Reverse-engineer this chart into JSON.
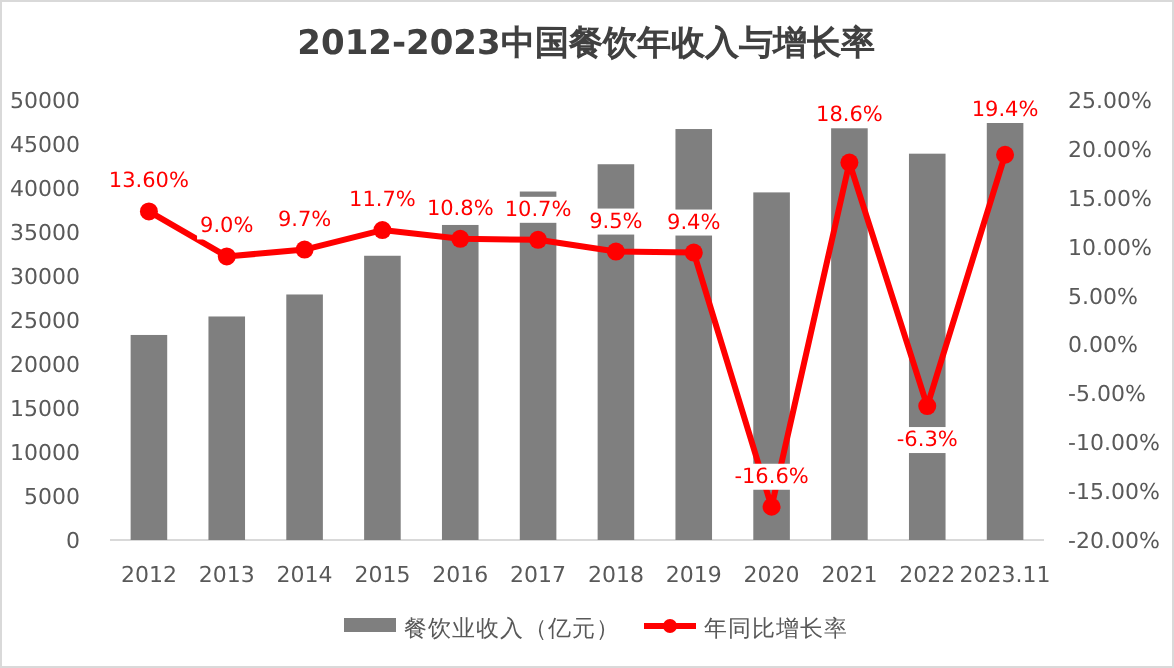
{
  "chart_data": {
    "type": "bar",
    "title": "2012-2023中国餐饮年收入与增长率",
    "categories": [
      "2012",
      "2013",
      "2014",
      "2015",
      "2016",
      "2017",
      "2018",
      "2019",
      "2020",
      "2021",
      "2022",
      "2023.11"
    ],
    "series": [
      {
        "name": "餐饮业收入（亿元）",
        "type": "bar",
        "color": "#7f7f7f",
        "values": [
          23300,
          25400,
          27900,
          32300,
          35800,
          39600,
          42700,
          46700,
          39500,
          46900,
          43900,
          47500
        ]
      },
      {
        "name": "年同比增长率",
        "type": "line",
        "axis": "y2",
        "color": "#ff0000",
        "marker": "circle",
        "values": [
          13.6,
          9.0,
          9.7,
          11.7,
          10.8,
          10.7,
          9.5,
          9.4,
          -16.6,
          18.6,
          -6.3,
          19.4
        ],
        "value_labels": [
          "13.60%",
          "9.0%",
          "9.7%",
          "11.7%",
          "10.8%",
          "10.7%",
          "9.5%",
          "9.4%",
          "-16.6%",
          "18.6%",
          "-6.3%",
          "19.4%"
        ]
      }
    ],
    "ylim": [
      0,
      50000
    ],
    "yticks": [
      0,
      5000,
      10000,
      15000,
      20000,
      25000,
      30000,
      35000,
      40000,
      45000,
      50000
    ],
    "y2lim": [
      -20,
      25
    ],
    "y2ticks": [
      {
        "value": -20,
        "label": "-20.00%"
      },
      {
        "value": -15,
        "label": "-15.00%"
      },
      {
        "value": -10,
        "label": "-10.00%"
      },
      {
        "value": -5,
        "label": "-5.00%"
      },
      {
        "value": 0,
        "label": "0.00%"
      },
      {
        "value": 5,
        "label": "5.00%"
      },
      {
        "value": 10,
        "label": "10.00%"
      },
      {
        "value": 15,
        "label": "15.00%"
      },
      {
        "value": 20,
        "label": "20.00%"
      },
      {
        "value": 25,
        "label": "25.00%"
      }
    ],
    "grid": false,
    "legend": "bottom"
  }
}
